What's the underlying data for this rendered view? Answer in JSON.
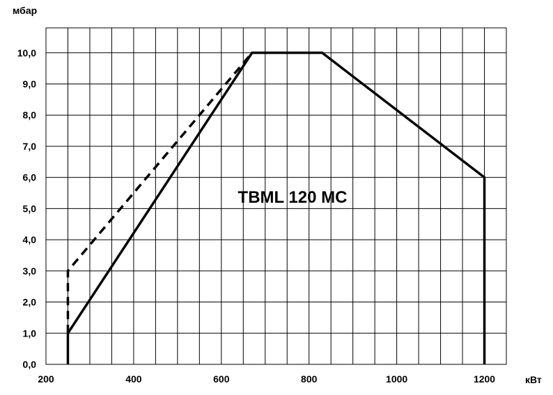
{
  "chart_data": {
    "type": "line",
    "title": "TBML 120 MC",
    "xlabel": "кВт",
    "ylabel": "мбар",
    "xlim": [
      200,
      1250
    ],
    "ylim": [
      0,
      10.8
    ],
    "x_ticks": [
      200,
      400,
      600,
      800,
      1000,
      1200
    ],
    "x_tick_labels": [
      "200",
      "400",
      "600",
      "800",
      "1000",
      "1200"
    ],
    "y_ticks": [
      0,
      1,
      2,
      3,
      4,
      5,
      6,
      7,
      8,
      9,
      10
    ],
    "y_tick_labels": [
      "0,0",
      "1,0",
      "2,0",
      "3,0",
      "4,0",
      "5,0",
      "6,0",
      "7,0",
      "8,0",
      "9,0",
      "10,0"
    ],
    "grid": true,
    "series": [
      {
        "style": "solid",
        "x": [
          250,
          250,
          670,
          830,
          1200,
          1200
        ],
        "y": [
          0,
          1.0,
          10.0,
          10.0,
          6.0,
          0
        ]
      },
      {
        "style": "dashed",
        "x": [
          250,
          250,
          670
        ],
        "y": [
          1.0,
          3.0,
          10.0
        ]
      }
    ]
  }
}
